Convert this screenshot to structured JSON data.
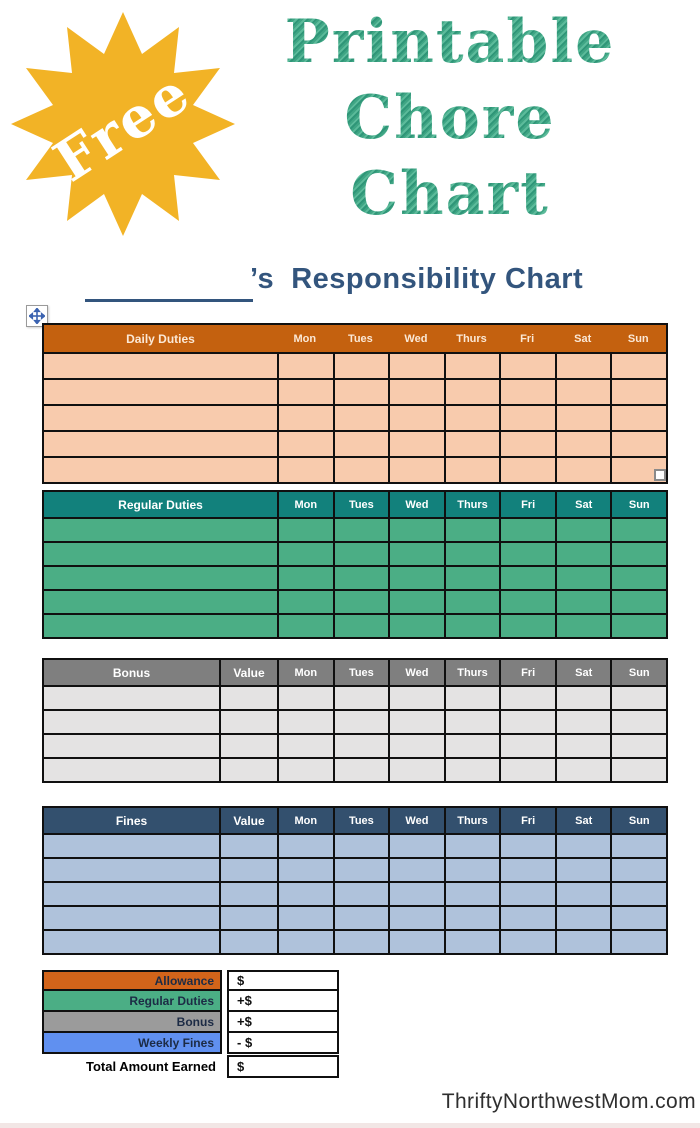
{
  "badge": {
    "label": "Free",
    "star_color": "#F2B326",
    "text_color": "#FFFFFF"
  },
  "title": {
    "lines": [
      "Printable",
      "Chore",
      "Chart"
    ],
    "color": "#3FA584"
  },
  "heading": {
    "possessive": "’s  Responsibility Chart",
    "color": "#33557D"
  },
  "days": [
    "Mon",
    "Tues",
    "Wed",
    "Thurs",
    "Fri",
    "Sat",
    "Sun"
  ],
  "tables": [
    {
      "id": "daily",
      "title": "Daily Duties",
      "value_label": null,
      "rows": 5,
      "header_dividers": false,
      "colors": {
        "header_bg": "#C4610F",
        "header_text": "#FBE8D6",
        "row_bg": "#F8CBAD"
      }
    },
    {
      "id": "regular",
      "title": "Regular Duties",
      "value_label": null,
      "rows": 5,
      "header_dividers": true,
      "colors": {
        "header_bg": "#12817C",
        "header_text": "#FFFFFF",
        "row_bg": "#4BAE85"
      }
    },
    {
      "id": "bonus",
      "title": "Bonus",
      "value_label": "Value",
      "rows": 4,
      "header_dividers": true,
      "colors": {
        "header_bg": "#7F7F7F",
        "header_text": "#FFFFFF",
        "row_bg": "#E4E3E3"
      }
    },
    {
      "id": "fines",
      "title": "Fines",
      "value_label": "Value",
      "rows": 5,
      "header_dividers": true,
      "colors": {
        "header_bg": "#33506E",
        "header_text": "#FFFFFF",
        "row_bg": "#AFC2DB"
      }
    }
  ],
  "summary": {
    "rows": [
      {
        "label": "Allowance",
        "value": "$",
        "bg": "#D2641A",
        "total": false
      },
      {
        "label": "Regular Duties",
        "value": "+$",
        "bg": "#4BAE85",
        "total": false
      },
      {
        "label": "Bonus",
        "value": "+$",
        "bg": "#9B9B9B",
        "total": false
      },
      {
        "label": "Weekly Fines",
        "value": "- $",
        "bg": "#6090F0",
        "total": false
      },
      {
        "label": "Total Amount Earned",
        "value": "$",
        "bg": null,
        "total": true
      }
    ]
  },
  "footer": {
    "site": "ThriftyNorthwestMom.com"
  },
  "icons": {
    "move_handle": "four-way-arrows",
    "resize_handle": "small-square",
    "badge": "starburst"
  }
}
